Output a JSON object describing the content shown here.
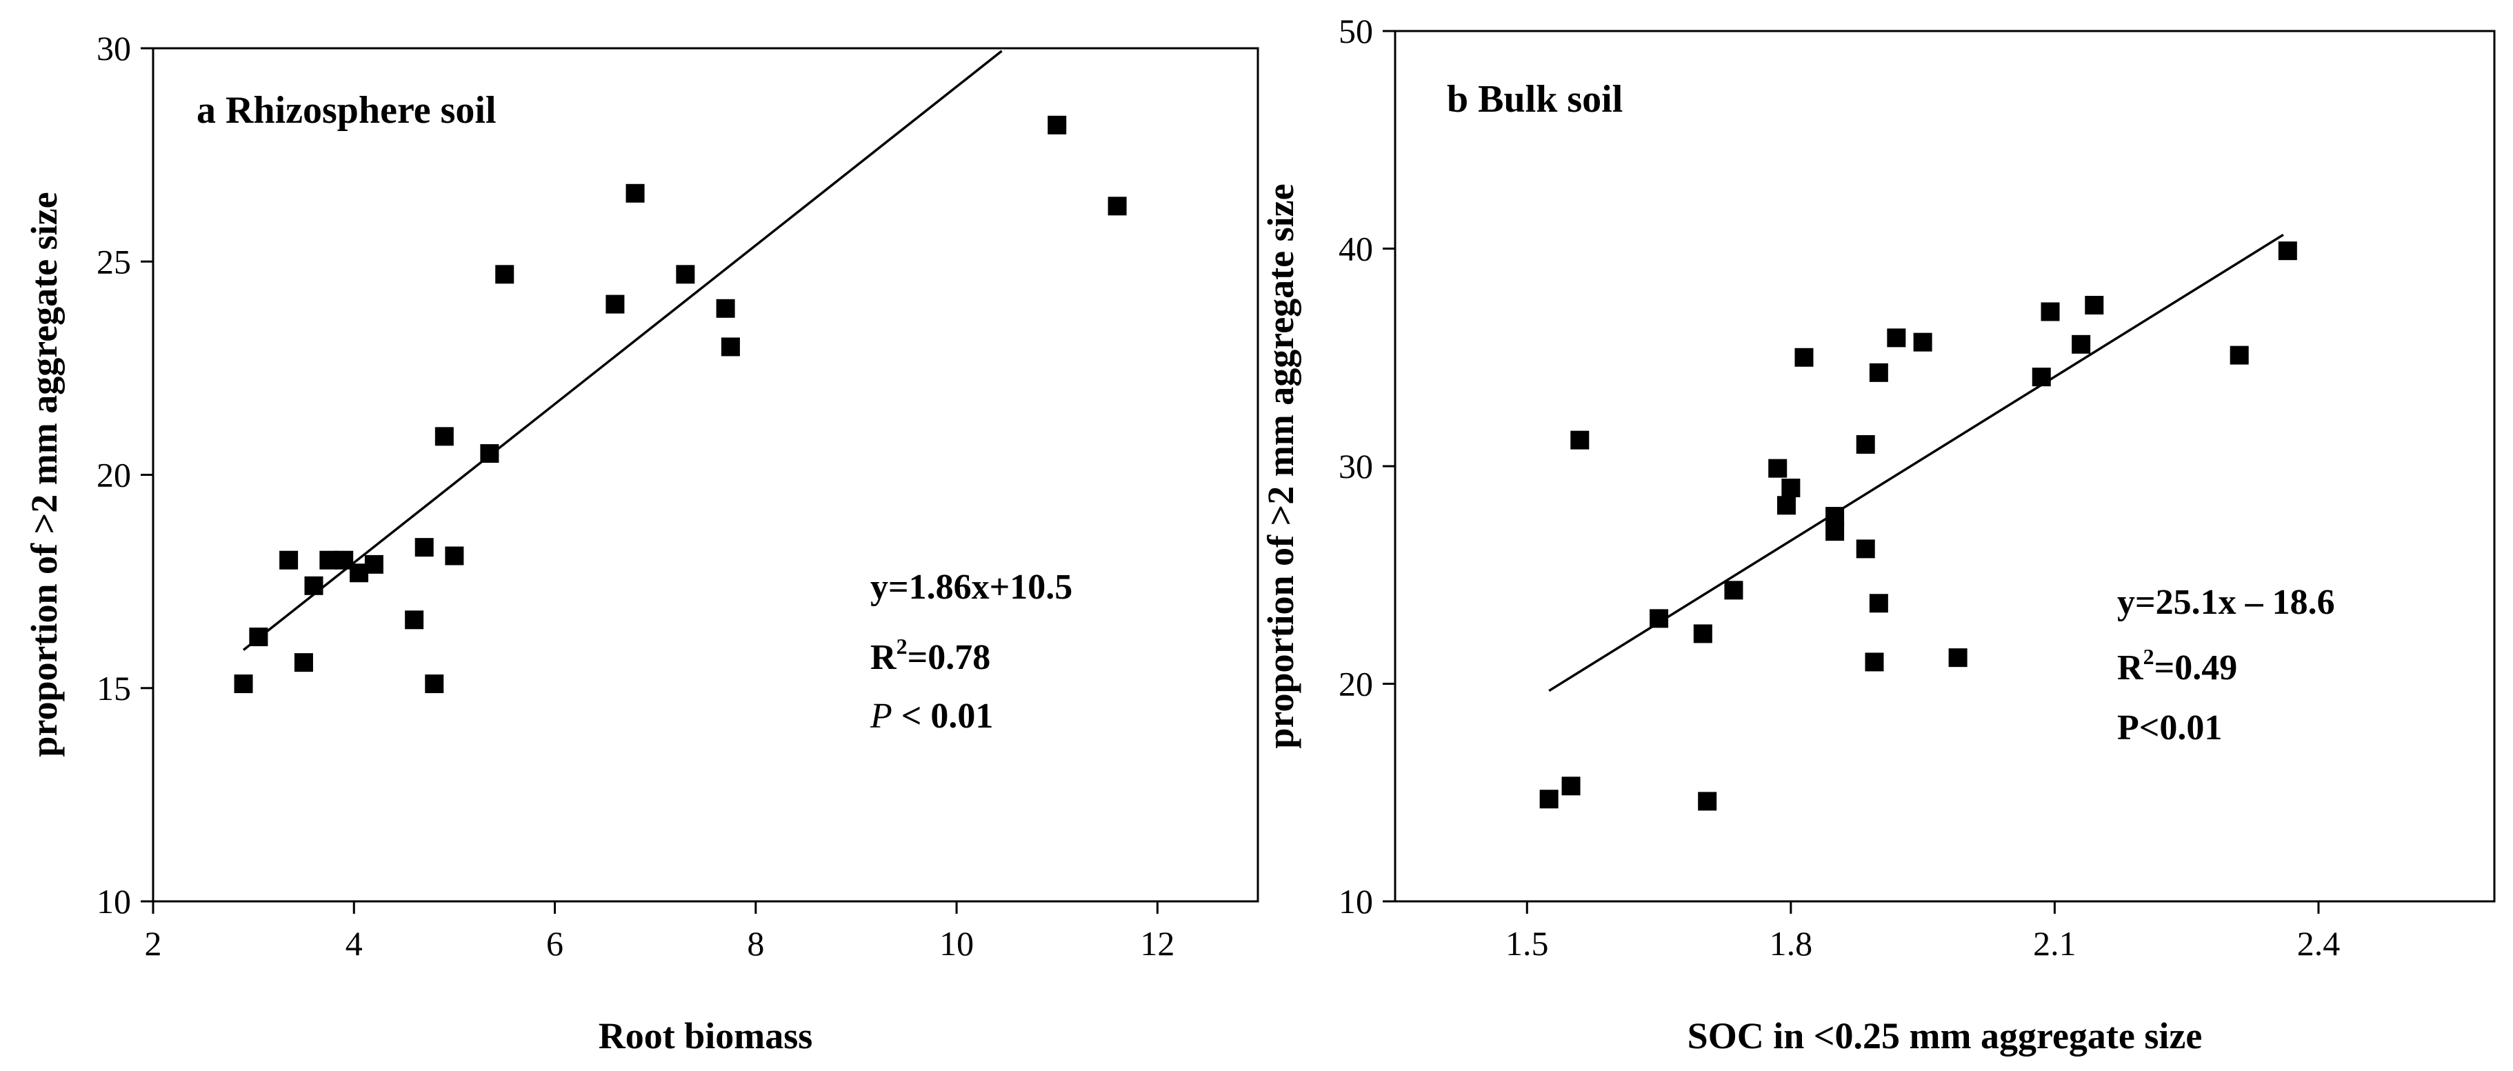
{
  "chart_data": [
    {
      "type": "scatter",
      "panel_label": "a Rhizosphere soil",
      "xlabel": "Root biomass",
      "ylabel": "proportion of >2 mm aggregate size",
      "xlim": [
        2,
        13
      ],
      "ylim": [
        10,
        30
      ],
      "xticks": [
        2,
        4,
        6,
        8,
        10,
        12
      ],
      "yticks": [
        10,
        15,
        20,
        25,
        30
      ],
      "points": [
        {
          "x": 2.9,
          "y": 15.1
        },
        {
          "x": 3.05,
          "y": 16.2
        },
        {
          "x": 3.35,
          "y": 18.0
        },
        {
          "x": 3.5,
          "y": 15.6
        },
        {
          "x": 3.6,
          "y": 17.4
        },
        {
          "x": 3.75,
          "y": 18.0
        },
        {
          "x": 3.9,
          "y": 18.0
        },
        {
          "x": 4.05,
          "y": 17.7
        },
        {
          "x": 4.2,
          "y": 17.9
        },
        {
          "x": 4.6,
          "y": 16.6
        },
        {
          "x": 4.7,
          "y": 18.3
        },
        {
          "x": 4.8,
          "y": 15.1
        },
        {
          "x": 4.9,
          "y": 20.9
        },
        {
          "x": 5.0,
          "y": 18.1
        },
        {
          "x": 5.35,
          "y": 20.5
        },
        {
          "x": 5.5,
          "y": 24.7
        },
        {
          "x": 6.6,
          "y": 24.0
        },
        {
          "x": 6.8,
          "y": 26.6
        },
        {
          "x": 7.3,
          "y": 24.7
        },
        {
          "x": 7.7,
          "y": 23.9
        },
        {
          "x": 7.75,
          "y": 23.0
        },
        {
          "x": 11.0,
          "y": 28.2
        },
        {
          "x": 11.6,
          "y": 26.3
        }
      ],
      "fit": {
        "slope": 1.86,
        "intercept": 10.5,
        "x_range": [
          2.9,
          10.45
        ]
      },
      "equation": "y=1.86x+10.5",
      "r2_label": "R",
      "r2_sup": "2",
      "r2_value": "=0.78",
      "p_label": "P",
      "p_value": " < 0.01"
    },
    {
      "type": "scatter",
      "panel_label": "b Bulk soil",
      "xlabel": "SOC in <0.25 mm aggregate size",
      "ylabel": "proportion of >2 mm aggregate size",
      "xlim": [
        1.35,
        2.6
      ],
      "ylim": [
        10,
        50
      ],
      "xticks": [
        1.5,
        1.8,
        2.1,
        2.4
      ],
      "xtick_labels": [
        "1.5",
        "1.8",
        "2.1",
        "2.4"
      ],
      "yticks": [
        10,
        20,
        30,
        40,
        50
      ],
      "points": [
        {
          "x": 1.525,
          "y": 14.7
        },
        {
          "x": 1.55,
          "y": 15.3
        },
        {
          "x": 1.56,
          "y": 31.2
        },
        {
          "x": 1.65,
          "y": 23.0
        },
        {
          "x": 1.7,
          "y": 22.3
        },
        {
          "x": 1.705,
          "y": 14.6
        },
        {
          "x": 1.735,
          "y": 24.3
        },
        {
          "x": 1.785,
          "y": 29.9
        },
        {
          "x": 1.795,
          "y": 28.2
        },
        {
          "x": 1.8,
          "y": 29.0
        },
        {
          "x": 1.815,
          "y": 35.0
        },
        {
          "x": 1.85,
          "y": 27.7
        },
        {
          "x": 1.85,
          "y": 27.0
        },
        {
          "x": 1.885,
          "y": 31.0
        },
        {
          "x": 1.885,
          "y": 26.2
        },
        {
          "x": 1.895,
          "y": 21.0
        },
        {
          "x": 1.9,
          "y": 34.3
        },
        {
          "x": 1.9,
          "y": 23.7
        },
        {
          "x": 1.92,
          "y": 35.9
        },
        {
          "x": 1.95,
          "y": 35.7
        },
        {
          "x": 1.99,
          "y": 21.2
        },
        {
          "x": 2.085,
          "y": 34.1
        },
        {
          "x": 2.095,
          "y": 37.1
        },
        {
          "x": 2.13,
          "y": 35.6
        },
        {
          "x": 2.145,
          "y": 37.4
        },
        {
          "x": 2.31,
          "y": 35.1
        },
        {
          "x": 2.365,
          "y": 39.9
        }
      ],
      "fit": {
        "slope": 25.1,
        "intercept": -18.6,
        "x_range": [
          1.525,
          2.36
        ]
      },
      "equation": "y=25.1x – 18.6",
      "r2_label": "R",
      "r2_sup": "2",
      "r2_value": "=0.49",
      "p_label": "",
      "p_value": "P<0.01"
    }
  ]
}
